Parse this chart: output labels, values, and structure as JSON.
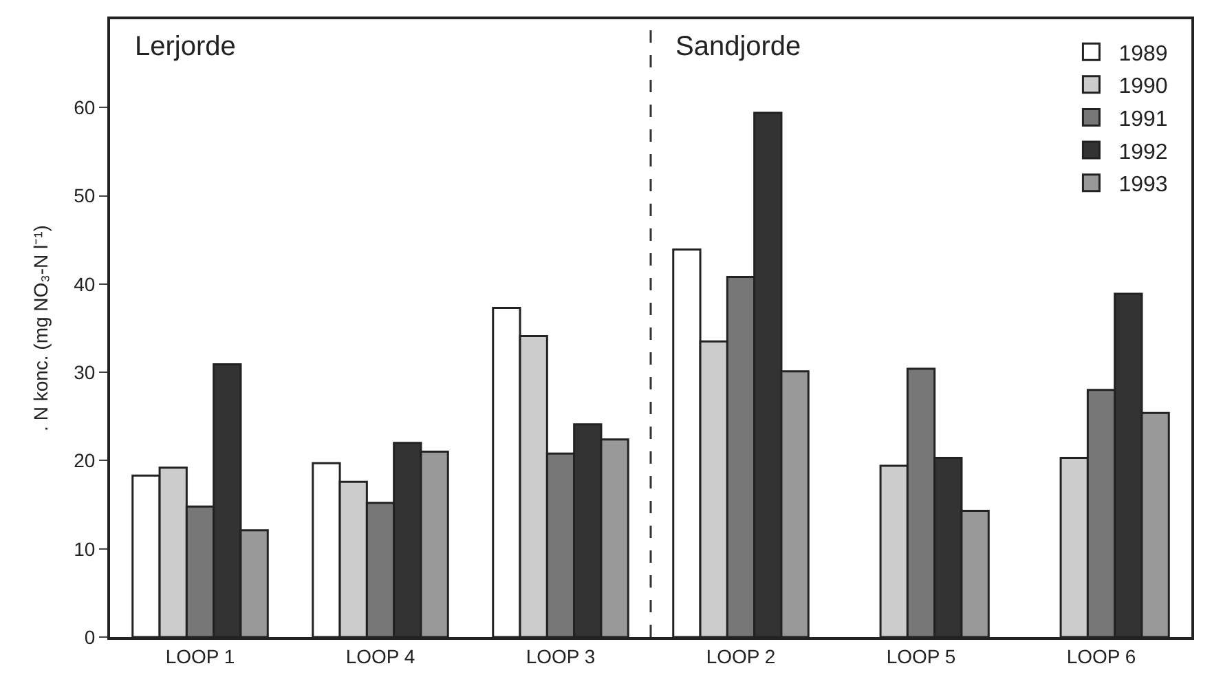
{
  "chart_data": {
    "type": "bar",
    "ylabel": ". N konc. (mg NO₃-N l⁻¹)",
    "categories": [
      "LOOP 1",
      "LOOP 4",
      "LOOP 3",
      "LOOP 2",
      "LOOP 5",
      "LOOP 6"
    ],
    "series": [
      {
        "name": "1989",
        "color": "#ffffff",
        "values": [
          18.3,
          19.7,
          37.3,
          43.9,
          null,
          null
        ]
      },
      {
        "name": "1990",
        "color": "#cccccc",
        "values": [
          19.2,
          17.6,
          34.1,
          33.5,
          19.4,
          20.3
        ]
      },
      {
        "name": "1991",
        "color": "#777777",
        "values": [
          14.8,
          15.2,
          20.8,
          40.8,
          30.4,
          28.0
        ]
      },
      {
        "name": "1992",
        "color": "#333333",
        "values": [
          30.9,
          22.0,
          24.1,
          59.4,
          20.3,
          38.9
        ]
      },
      {
        "name": "1993",
        "color": "#999999",
        "values": [
          12.1,
          21.0,
          22.4,
          30.1,
          14.3,
          25.4
        ]
      }
    ],
    "ylim": [
      0,
      70
    ],
    "yticks": [
      0,
      10,
      20,
      30,
      40,
      50,
      60
    ],
    "annotations": [
      "Lerjorde",
      "Sandjorde"
    ],
    "legend": "top right"
  }
}
